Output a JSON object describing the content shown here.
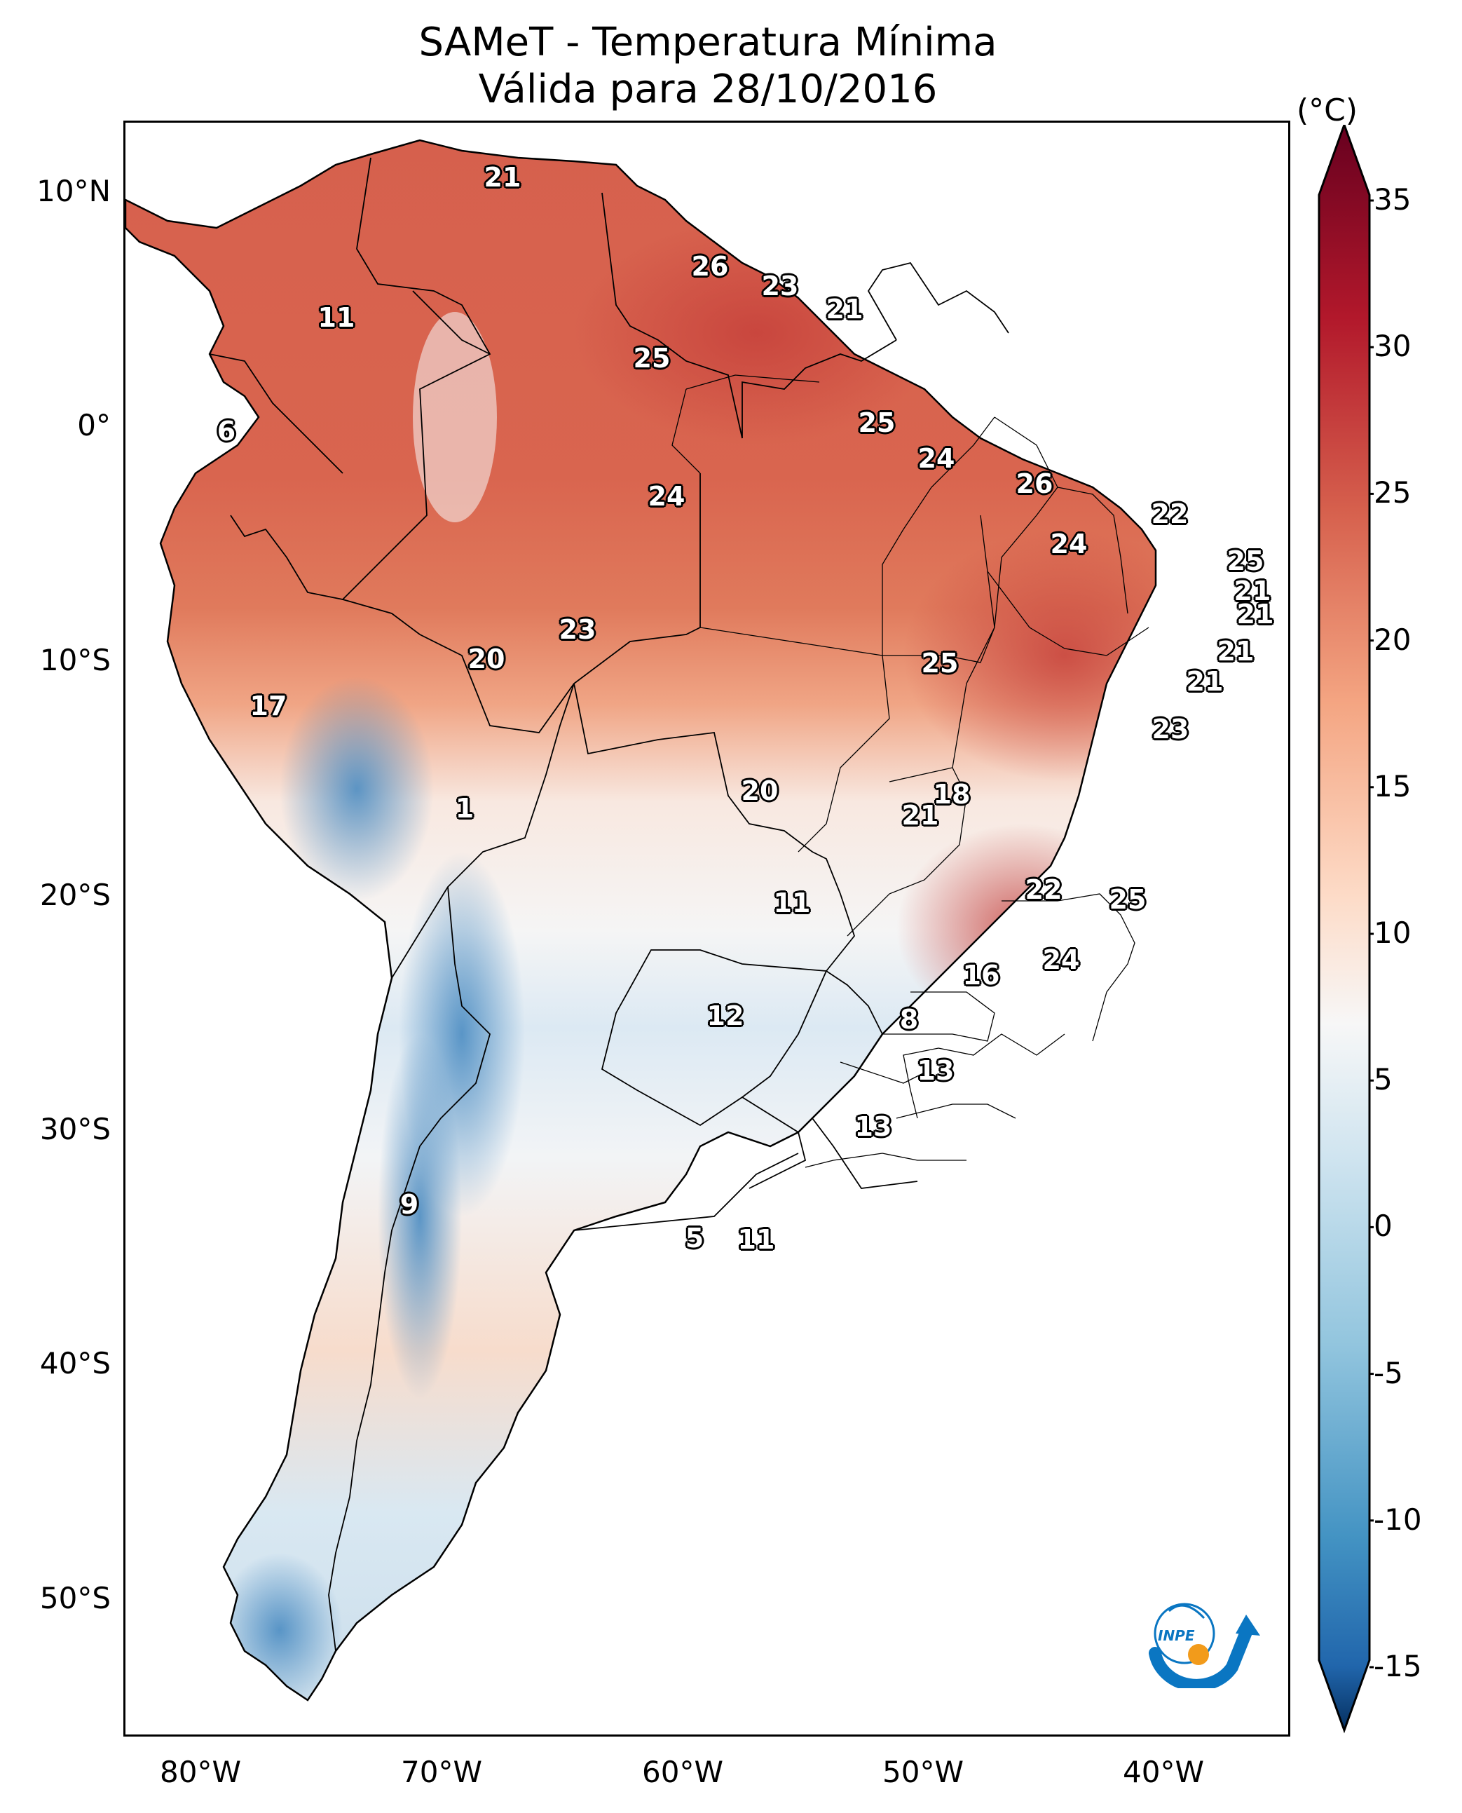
{
  "title": {
    "line1": "SAMeT - Temperatura Mínima",
    "line2": "Válida para 28/10/2016"
  },
  "axes": {
    "lat_ticks": [
      "10°N",
      "0°",
      "10°S",
      "20°S",
      "30°S",
      "40°S",
      "50°S"
    ],
    "lon_ticks": [
      "80°W",
      "70°W",
      "60°W",
      "50°W",
      "40°W"
    ]
  },
  "colorbar": {
    "unit": "(°C)",
    "ticks": [
      "35",
      "30",
      "25",
      "20",
      "15",
      "10",
      "5",
      "0",
      "-5",
      "-10",
      "-15"
    ],
    "range": [
      -15,
      35
    ],
    "colors": {
      "min": "#0b3a6e",
      "cold": "#2f6fb0",
      "cool": "#9cc6e0",
      "neutral": "#f7f7f7",
      "warm": "#f4a582",
      "hot": "#d6604d",
      "max": "#67001f"
    }
  },
  "station_labels": [
    {
      "text": "21"
    },
    {
      "text": "26"
    },
    {
      "text": "23"
    },
    {
      "text": "21"
    },
    {
      "text": "11"
    },
    {
      "text": "25"
    },
    {
      "text": "6"
    },
    {
      "text": "25"
    },
    {
      "text": "24"
    },
    {
      "text": "24"
    },
    {
      "text": "26"
    },
    {
      "text": "22"
    },
    {
      "text": "24"
    },
    {
      "text": "25"
    },
    {
      "text": "21"
    },
    {
      "text": "21"
    },
    {
      "text": "23"
    },
    {
      "text": "20"
    },
    {
      "text": "25"
    },
    {
      "text": "21"
    },
    {
      "text": "17"
    },
    {
      "text": "21"
    },
    {
      "text": "23"
    },
    {
      "text": "20"
    },
    {
      "text": "18"
    },
    {
      "text": "1"
    },
    {
      "text": "21"
    },
    {
      "text": "22"
    },
    {
      "text": "11"
    },
    {
      "text": "25"
    },
    {
      "text": "24"
    },
    {
      "text": "16"
    },
    {
      "text": "12"
    },
    {
      "text": "8"
    },
    {
      "text": "13"
    },
    {
      "text": "13"
    },
    {
      "text": "9"
    },
    {
      "text": "5"
    },
    {
      "text": "11"
    }
  ],
  "logo": {
    "text": "INPE"
  }
}
